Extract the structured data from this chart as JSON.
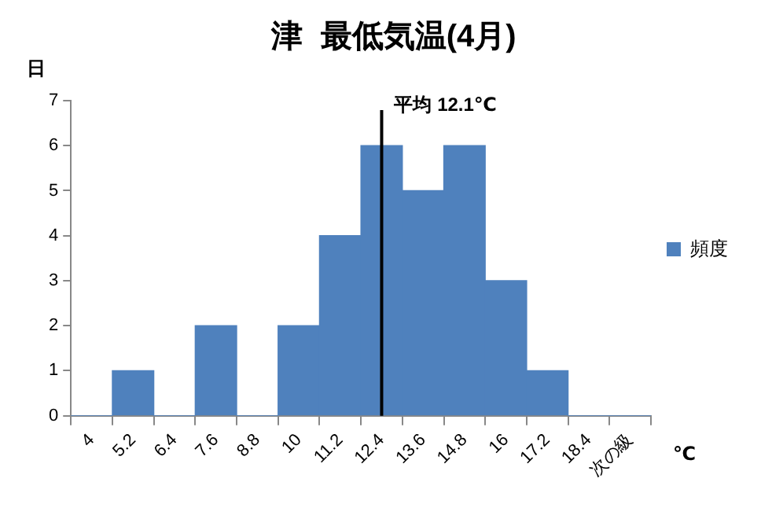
{
  "chart_data": {
    "type": "bar",
    "title": "津  最低気温(4月)",
    "xlabel": "℃",
    "ylabel": "日",
    "categories": [
      "4",
      "5.2",
      "6.4",
      "7.6",
      "8.8",
      "10",
      "11.2",
      "12.4",
      "13.6",
      "14.8",
      "16",
      "17.2",
      "18.4",
      "次の級"
    ],
    "series": [
      {
        "name": "頻度",
        "color": "#4f81bd",
        "values": [
          0,
          1,
          0,
          2,
          0,
          2,
          4,
          6,
          5,
          6,
          3,
          1,
          0,
          0
        ]
      }
    ],
    "ylim": [
      0,
      7
    ],
    "yticks": [
      0,
      1,
      2,
      3,
      4,
      5,
      6,
      7
    ],
    "grid": false,
    "legend": "right",
    "ref_lines": [
      {
        "axis": "x",
        "value": "12.4",
        "label": "平均 12.1℃",
        "color": "#000000"
      }
    ]
  }
}
